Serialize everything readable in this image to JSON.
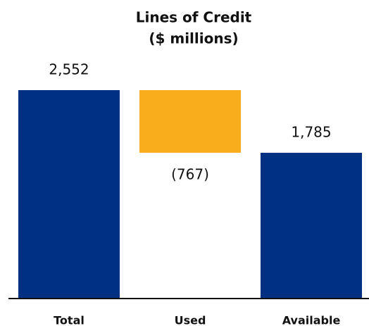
{
  "chart_data": {
    "type": "waterfall",
    "title": "Lines of Credit",
    "subtitle": "($ millions)",
    "categories": [
      "Total",
      "Used",
      "Available"
    ],
    "values": [
      2552,
      -767,
      1785
    ],
    "value_labels": [
      "2,552",
      "(767)",
      "1,785"
    ],
    "measure": [
      "absolute",
      "relative",
      "total"
    ],
    "colors": [
      "#003082",
      "#f8ad1d",
      "#003082"
    ]
  }
}
